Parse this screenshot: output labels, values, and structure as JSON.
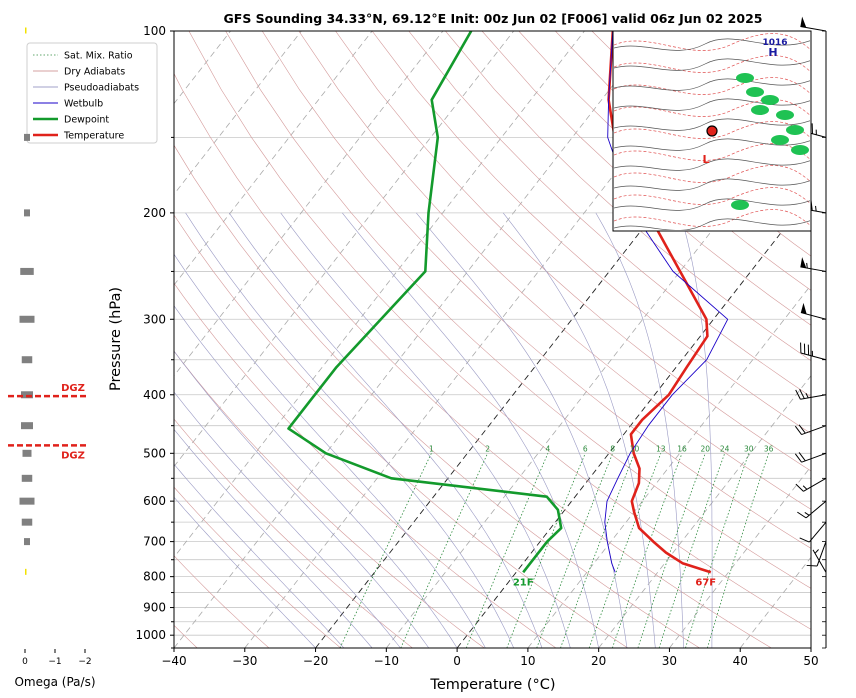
{
  "chart_data": {
    "type": "line",
    "title": "GFS Sounding 34.33°N, 69.12°E Init: 00z Jun 02 [F006] valid 06z Jun 02 2025",
    "xlabel": "Temperature (°C)",
    "ylabel": "Pressure (hPa)",
    "xlim": [
      -40,
      50
    ],
    "ylim": [
      1050,
      100
    ],
    "y_scale": "log",
    "skew": "skew-T",
    "x_ticks": [
      "−40",
      "−30",
      "−20",
      "−10",
      "0",
      "10",
      "20",
      "30",
      "40",
      "50"
    ],
    "y_ticks": [
      {
        "p": 100,
        "label": "100"
      },
      {
        "p": 200,
        "label": "200"
      },
      {
        "p": 300,
        "label": "300"
      },
      {
        "p": 400,
        "label": "400"
      },
      {
        "p": 500,
        "label": "500"
      },
      {
        "p": 600,
        "label": "600"
      },
      {
        "p": 700,
        "label": "700"
      },
      {
        "p": 800,
        "label": "800"
      },
      {
        "p": 900,
        "label": "900"
      },
      {
        "p": 1000,
        "label": "1000"
      }
    ],
    "legend_position": "top-left",
    "legend": [
      {
        "label": "Sat. Mix. Ratio",
        "color": "#2e8b3e",
        "style": "dotted"
      },
      {
        "label": "Dry Adiabats",
        "color": "#c98080",
        "style": "solid"
      },
      {
        "label": "Pseudoadiabats",
        "color": "#8080b8",
        "style": "solid"
      },
      {
        "label": "Wetbulb",
        "color": "#1a00c8",
        "style": "solid"
      },
      {
        "label": "Dewpoint",
        "color": "#139a2c",
        "style": "solid"
      },
      {
        "label": "Temperature",
        "color": "#e0221b",
        "style": "solid"
      }
    ],
    "series": [
      {
        "name": "Temperature",
        "color": "#e0221b",
        "points": [
          [
            787,
            27.5
          ],
          [
            760,
            22.5
          ],
          [
            730,
            19
          ],
          [
            700,
            16
          ],
          [
            665,
            12.5
          ],
          [
            625,
            10
          ],
          [
            600,
            8.5
          ],
          [
            560,
            7.5
          ],
          [
            530,
            6
          ],
          [
            500,
            3.5
          ],
          [
            465,
            1
          ],
          [
            440,
            1
          ],
          [
            400,
            2
          ],
          [
            360,
            1.5
          ],
          [
            320,
            1
          ],
          [
            300,
            -1
          ],
          [
            250,
            -10
          ],
          [
            200,
            -21
          ],
          [
            150,
            -34
          ],
          [
            130,
            -39
          ],
          [
            100,
            -46
          ]
        ]
      },
      {
        "name": "Dewpoint",
        "color": "#139a2c",
        "points": [
          [
            787,
            1
          ],
          [
            760,
            1
          ],
          [
            700,
            1
          ],
          [
            665,
            1.5
          ],
          [
            620,
            -1
          ],
          [
            590,
            -4
          ],
          [
            550,
            -28
          ],
          [
            500,
            -40
          ],
          [
            455,
            -48
          ],
          [
            410,
            -48
          ],
          [
            360,
            -48
          ],
          [
            300,
            -47
          ],
          [
            250,
            -46
          ],
          [
            200,
            -52
          ],
          [
            150,
            -59
          ],
          [
            130,
            -64
          ],
          [
            100,
            -66
          ]
        ]
      },
      {
        "name": "Wetbulb",
        "color": "#1a00c8",
        "points": [
          [
            787,
            14
          ],
          [
            760,
            12.5
          ],
          [
            700,
            9.5
          ],
          [
            650,
            7
          ],
          [
            600,
            5
          ],
          [
            550,
            4
          ],
          [
            500,
            3
          ],
          [
            450,
            2.5
          ],
          [
            400,
            2.5
          ],
          [
            350,
            3.5
          ],
          [
            300,
            2
          ],
          [
            250,
            -11
          ],
          [
            200,
            -23
          ],
          [
            150,
            -35
          ],
          [
            130,
            -39
          ],
          [
            100,
            -46
          ]
        ]
      }
    ],
    "surface_labels": {
      "dewpoint": "21F",
      "temperature": "67F"
    },
    "mixing_ratio_labels": [
      "1",
      "2",
      "4",
      "6",
      "8",
      "10",
      "13",
      "16",
      "20",
      "24",
      "30",
      "36"
    ],
    "dgz": {
      "label": "DGZ",
      "p_top": 402,
      "p_bottom": 485,
      "color": "#e0221b"
    },
    "omega": {
      "xlabel": "Omega (Pa/s)",
      "x_ticks": [
        "0",
        "−1",
        "−2"
      ],
      "bars": [
        {
          "p": 100,
          "value": 0.05
        },
        {
          "p": 150,
          "value": 0.2
        },
        {
          "p": 200,
          "value": 0.2
        },
        {
          "p": 250,
          "value": 0.45
        },
        {
          "p": 300,
          "value": 0.5
        },
        {
          "p": 350,
          "value": 0.35
        },
        {
          "p": 400,
          "value": 0.4
        },
        {
          "p": 450,
          "value": 0.4
        },
        {
          "p": 500,
          "value": 0.3
        },
        {
          "p": 550,
          "value": 0.35
        },
        {
          "p": 600,
          "value": 0.5
        },
        {
          "p": 650,
          "value": 0.35
        },
        {
          "p": 700,
          "value": 0.2
        },
        {
          "p": 787,
          "value": 0.05
        }
      ]
    },
    "winds": [
      {
        "p": 100,
        "dir": 280,
        "kt": 50
      },
      {
        "p": 150,
        "dir": 285,
        "kt": 45
      },
      {
        "p": 200,
        "dir": 280,
        "kt": 45
      },
      {
        "p": 250,
        "dir": 280,
        "kt": 55
      },
      {
        "p": 300,
        "dir": 285,
        "kt": 50
      },
      {
        "p": 350,
        "dir": 285,
        "kt": 35
      },
      {
        "p": 400,
        "dir": 260,
        "kt": 25
      },
      {
        "p": 450,
        "dir": 250,
        "kt": 20
      },
      {
        "p": 500,
        "dir": 250,
        "kt": 20
      },
      {
        "p": 550,
        "dir": 240,
        "kt": 15
      },
      {
        "p": 600,
        "dir": 230,
        "kt": 15
      },
      {
        "p": 650,
        "dir": 220,
        "kt": 10
      },
      {
        "p": 700,
        "dir": 200,
        "kt": 10
      },
      {
        "p": 787,
        "dir": 330,
        "kt": 5
      }
    ],
    "inset_map": {
      "labels": [
        "1016",
        "H",
        "L"
      ],
      "marker": "station"
    }
  }
}
